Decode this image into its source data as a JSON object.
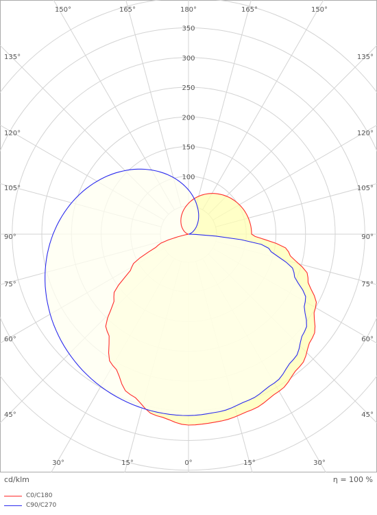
{
  "chart_data": {
    "type": "polar",
    "unit_label": "cd/klm",
    "efficiency_label": "η = 100 %",
    "radial_ticks": [
      100,
      150,
      200,
      250,
      300,
      350
    ],
    "angle_labels_top": [
      "150°",
      "165°",
      "180°",
      "165°",
      "150°"
    ],
    "angle_labels_left": [
      "135°",
      "120°",
      "105°",
      "90°",
      "75°",
      "60°",
      "45°"
    ],
    "angle_labels_right": [
      "135°",
      "120°",
      "105°",
      "90°",
      "75°",
      "60°",
      "45°"
    ],
    "angle_labels_bottom": [
      "30°",
      "15°",
      "0°",
      "15°",
      "30°"
    ],
    "legend_position": "bottom-left",
    "series": [
      {
        "name": "C0/C180",
        "color": "#ff2a2a",
        "fill": "#ffffb4",
        "points": [
          {
            "angle": 0,
            "value": 324
          },
          {
            "angle": 10,
            "value": 322
          },
          {
            "angle": 20,
            "value": 317
          },
          {
            "angle": 30,
            "value": 308
          },
          {
            "angle": 40,
            "value": 294
          },
          {
            "angle": 50,
            "value": 275
          },
          {
            "angle": 60,
            "value": 250
          },
          {
            "angle": 70,
            "value": 217
          },
          {
            "angle": 80,
            "value": 174
          },
          {
            "angle": 90,
            "value": 109
          },
          {
            "angle": -10,
            "value": 313
          },
          {
            "angle": -20,
            "value": 290
          },
          {
            "angle": -30,
            "value": 258
          },
          {
            "angle": -40,
            "value": 216
          },
          {
            "angle": -50,
            "value": 167
          },
          {
            "angle": -60,
            "value": 113
          },
          {
            "angle": -70,
            "value": 57
          },
          {
            "angle": -80,
            "value": 0
          },
          {
            "angle": -90,
            "value": 0
          }
        ]
      },
      {
        "name": "C90/C270",
        "color": "#2a2aee",
        "fill": "#fffff0",
        "points": [
          {
            "angle": 0,
            "value": 308
          },
          {
            "angle": 10,
            "value": 306
          },
          {
            "angle": 20,
            "value": 300
          },
          {
            "angle": 30,
            "value": 292
          },
          {
            "angle": 40,
            "value": 278
          },
          {
            "angle": 50,
            "value": 258
          },
          {
            "angle": 60,
            "value": 230
          },
          {
            "angle": 70,
            "value": 192
          },
          {
            "angle": 80,
            "value": 140
          },
          {
            "angle": 90,
            "value": 0
          }
        ]
      }
    ]
  }
}
